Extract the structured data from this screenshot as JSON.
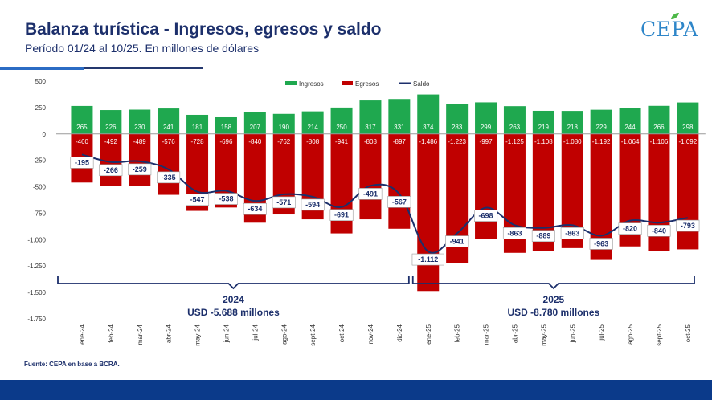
{
  "header": {
    "title": "Balanza turística - Ingresos, egresos y saldo",
    "subtitle": "Período 01/24 al 10/25. En millones de dólares"
  },
  "logo": {
    "text": "CEPA"
  },
  "source": "Fuente: CEPA en base a BCRA.",
  "colors": {
    "ingresos": "#1fa84f",
    "egresos": "#c00000",
    "saldo": "#1c2f6b",
    "footer": "#0b3a8a"
  },
  "chart_data": {
    "type": "bar",
    "title": "Balanza turística - Ingresos, egresos y saldo",
    "ylim": [
      -1750,
      500
    ],
    "yticks": [
      500,
      250,
      0,
      -250,
      -500,
      -750,
      -1000,
      -1250,
      -1500,
      -1750
    ],
    "ytick_labels": [
      "500",
      "250",
      "0",
      "-250",
      "-500",
      "-750",
      "-1.000",
      "-1.250",
      "-1.500",
      "-1.750"
    ],
    "categories": [
      "ene-24",
      "feb-24",
      "mar-24",
      "abr-24",
      "may-24",
      "jun-24",
      "jul-24",
      "ago-24",
      "sept-24",
      "oct-24",
      "nov-24",
      "dic-24",
      "ene-25",
      "feb-25",
      "mar-25",
      "abr-25",
      "may-25",
      "jun-25",
      "jul-25",
      "ago-25",
      "sept-25",
      "oct-25"
    ],
    "legend": [
      "Ingresos",
      "Egresos",
      "Saldo"
    ],
    "legend_position": "top-right",
    "series": [
      {
        "name": "Ingresos",
        "type": "bar",
        "values": [
          265,
          226,
          230,
          241,
          181,
          158,
          207,
          190,
          214,
          250,
          317,
          331,
          374,
          283,
          299,
          263,
          219,
          218,
          229,
          244,
          266,
          298
        ],
        "labels": [
          "265",
          "226",
          "230",
          "241",
          "181",
          "158",
          "207",
          "190",
          "214",
          "250",
          "317",
          "331",
          "374",
          "283",
          "299",
          "263",
          "219",
          "218",
          "229",
          "244",
          "266",
          "298"
        ]
      },
      {
        "name": "Egresos",
        "type": "bar",
        "values": [
          -460,
          -492,
          -489,
          -576,
          -728,
          -696,
          -840,
          -762,
          -808,
          -941,
          -808,
          -897,
          -1486,
          -1223,
          -997,
          -1125,
          -1108,
          -1080,
          -1192,
          -1064,
          -1106,
          -1092
        ],
        "labels": [
          "-460",
          "-492",
          "-489",
          "-576",
          "-728",
          "-696",
          "-840",
          "-762",
          "-808",
          "-941",
          "-808",
          "-897",
          "-1.486",
          "-1.223",
          "-997",
          "-1.125",
          "-1.108",
          "-1.080",
          "-1.192",
          "-1.064",
          "-1.106",
          "-1.092"
        ]
      },
      {
        "name": "Saldo",
        "type": "line",
        "values": [
          -195,
          -266,
          -259,
          -335,
          -547,
          -538,
          -634,
          -571,
          -594,
          -691,
          -491,
          -567,
          -1112,
          -941,
          -698,
          -863,
          -889,
          -863,
          -963,
          -820,
          -840,
          -793
        ],
        "labels": [
          "-195",
          "-266",
          "-259",
          "-335",
          "-547",
          "-538",
          "-634",
          "-571",
          "-594",
          "-691",
          "-491",
          "-567",
          "-1.112",
          "-941",
          "-698",
          "-863",
          "-889",
          "-863",
          "-963",
          "-820",
          "-840",
          "-793"
        ]
      }
    ],
    "annotations": [
      {
        "year": "2024",
        "total": "USD -5.688 millones",
        "from": 0,
        "to": 11
      },
      {
        "year": "2025",
        "total": "USD -8.780 millones",
        "from": 12,
        "to": 21
      }
    ]
  }
}
